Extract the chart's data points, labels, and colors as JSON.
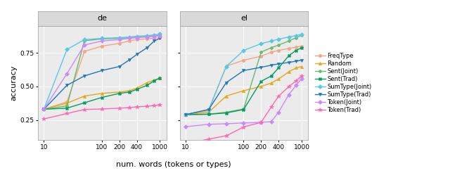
{
  "x_ticks": [
    10,
    100,
    200,
    400,
    1000
  ],
  "x_label": "num. words (tokens or types)",
  "y_label": "accuracy",
  "panels": [
    "de",
    "el"
  ],
  "series": [
    {
      "label": "FreqType",
      "color": "#F4A582",
      "marker": "o",
      "markersize": 3,
      "de": [
        0.33,
        0.385,
        0.76,
        0.8,
        0.82,
        0.84,
        0.848,
        0.854,
        0.858,
        0.862
      ],
      "el": [
        0.29,
        0.32,
        0.65,
        0.695,
        0.725,
        0.755,
        0.768,
        0.782,
        0.792,
        0.8
      ]
    },
    {
      "label": "Random",
      "color": "#E6A817",
      "marker": "^",
      "markersize": 3,
      "de": [
        0.33,
        0.375,
        0.428,
        0.448,
        0.458,
        0.468,
        0.488,
        0.528,
        0.548,
        0.562
      ],
      "el": [
        0.29,
        0.308,
        0.428,
        0.468,
        0.5,
        0.525,
        0.555,
        0.608,
        0.638,
        0.648
      ]
    },
    {
      "label": "Sent(Joint)",
      "color": "#66BB66",
      "marker": "P",
      "markersize": 3,
      "de": [
        0.33,
        0.355,
        0.84,
        0.853,
        0.858,
        0.863,
        0.868,
        0.873,
        0.878,
        0.883
      ],
      "el": [
        0.29,
        0.293,
        0.308,
        0.332,
        0.755,
        0.788,
        0.808,
        0.838,
        0.862,
        0.882
      ]
    },
    {
      "label": "Sent(Trad)",
      "color": "#009E60",
      "marker": "X",
      "markersize": 3,
      "de": [
        0.33,
        0.338,
        0.378,
        0.418,
        0.448,
        0.458,
        0.478,
        0.508,
        0.542,
        0.562
      ],
      "el": [
        0.29,
        0.293,
        0.302,
        0.328,
        0.538,
        0.578,
        0.638,
        0.728,
        0.768,
        0.788
      ]
    },
    {
      "label": "SumType(Joint)",
      "color": "#56C8E8",
      "marker": "D",
      "markersize": 3,
      "de": [
        0.33,
        0.775,
        0.848,
        0.858,
        0.863,
        0.868,
        0.873,
        0.878,
        0.883,
        0.89
      ],
      "el": [
        0.29,
        0.328,
        0.648,
        0.768,
        0.818,
        0.838,
        0.852,
        0.868,
        0.878,
        0.888
      ]
    },
    {
      "label": "SumType(Trad)",
      "color": "#1C78C0",
      "marker": "v",
      "markersize": 3,
      "de": [
        0.33,
        0.508,
        0.578,
        0.618,
        0.648,
        0.698,
        0.738,
        0.788,
        0.838,
        0.858
      ],
      "el": [
        0.29,
        0.328,
        0.528,
        0.618,
        0.642,
        0.658,
        0.668,
        0.678,
        0.688,
        0.695
      ]
    },
    {
      "label": "Token(Joint)",
      "color": "#CC88FF",
      "marker": "D",
      "markersize": 3,
      "de": [
        0.33,
        0.595,
        0.808,
        0.838,
        0.848,
        0.858,
        0.863,
        0.868,
        0.873,
        0.878
      ],
      "el": [
        0.2,
        0.218,
        0.222,
        0.228,
        0.232,
        0.238,
        0.308,
        0.438,
        0.508,
        0.558
      ]
    },
    {
      "label": "Token(Trad)",
      "color": "#FF69B4",
      "marker": "*",
      "markersize": 4,
      "de": [
        0.258,
        0.298,
        0.328,
        0.332,
        0.338,
        0.342,
        0.348,
        0.352,
        0.358,
        0.362
      ],
      "el": [
        0.072,
        0.108,
        0.132,
        0.198,
        0.232,
        0.348,
        0.428,
        0.498,
        0.542,
        0.578
      ]
    }
  ],
  "x_values": [
    10,
    25,
    50,
    100,
    200,
    300,
    400,
    600,
    800,
    1000
  ],
  "ylim": [
    0.1,
    0.95
  ],
  "yticks": [
    0.25,
    0.5,
    0.75
  ],
  "background_color": "#FFFFFF",
  "panel_bg": "#EBEBEB",
  "grid_color": "#FFFFFF",
  "strip_bg": "#D9D9D9",
  "strip_border": "#AAAAAA"
}
